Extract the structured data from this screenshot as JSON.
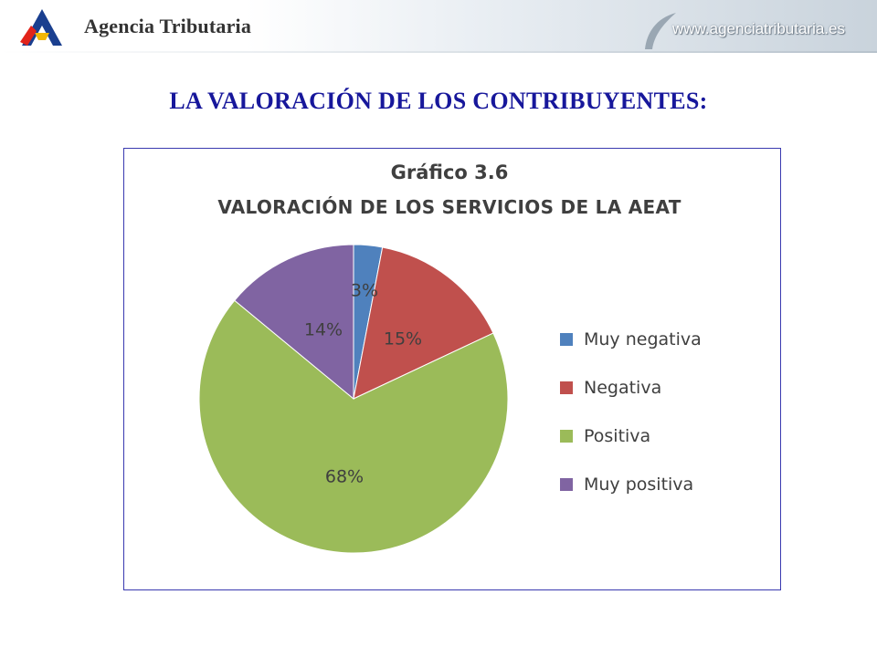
{
  "header": {
    "brand": "Agencia Tributaria",
    "url": "www.agenciatributaria.es",
    "logo_icon": "aeat-logo-icon",
    "swoosh_icon": "swoosh-icon"
  },
  "slide": {
    "title": "LA VALORACIÓN DE LOS CONTRIBUYENTES:"
  },
  "chart_data": {
    "type": "pie",
    "title": "Gráfico 3.6",
    "subtitle": "VALORACIÓN DE LOS SERVICIOS DE LA AEAT",
    "legend_position": "right",
    "slices": [
      {
        "label": "Muy negativa",
        "value": 3,
        "display": "3%",
        "color": "#4f81bd"
      },
      {
        "label": "Negativa",
        "value": 15,
        "display": "15%",
        "color": "#c0504d"
      },
      {
        "label": "Positiva",
        "value": 68,
        "display": "68%",
        "color": "#9bbb59"
      },
      {
        "label": "Muy positiva",
        "value": 14,
        "display": "14%",
        "color": "#8064a2"
      }
    ]
  }
}
